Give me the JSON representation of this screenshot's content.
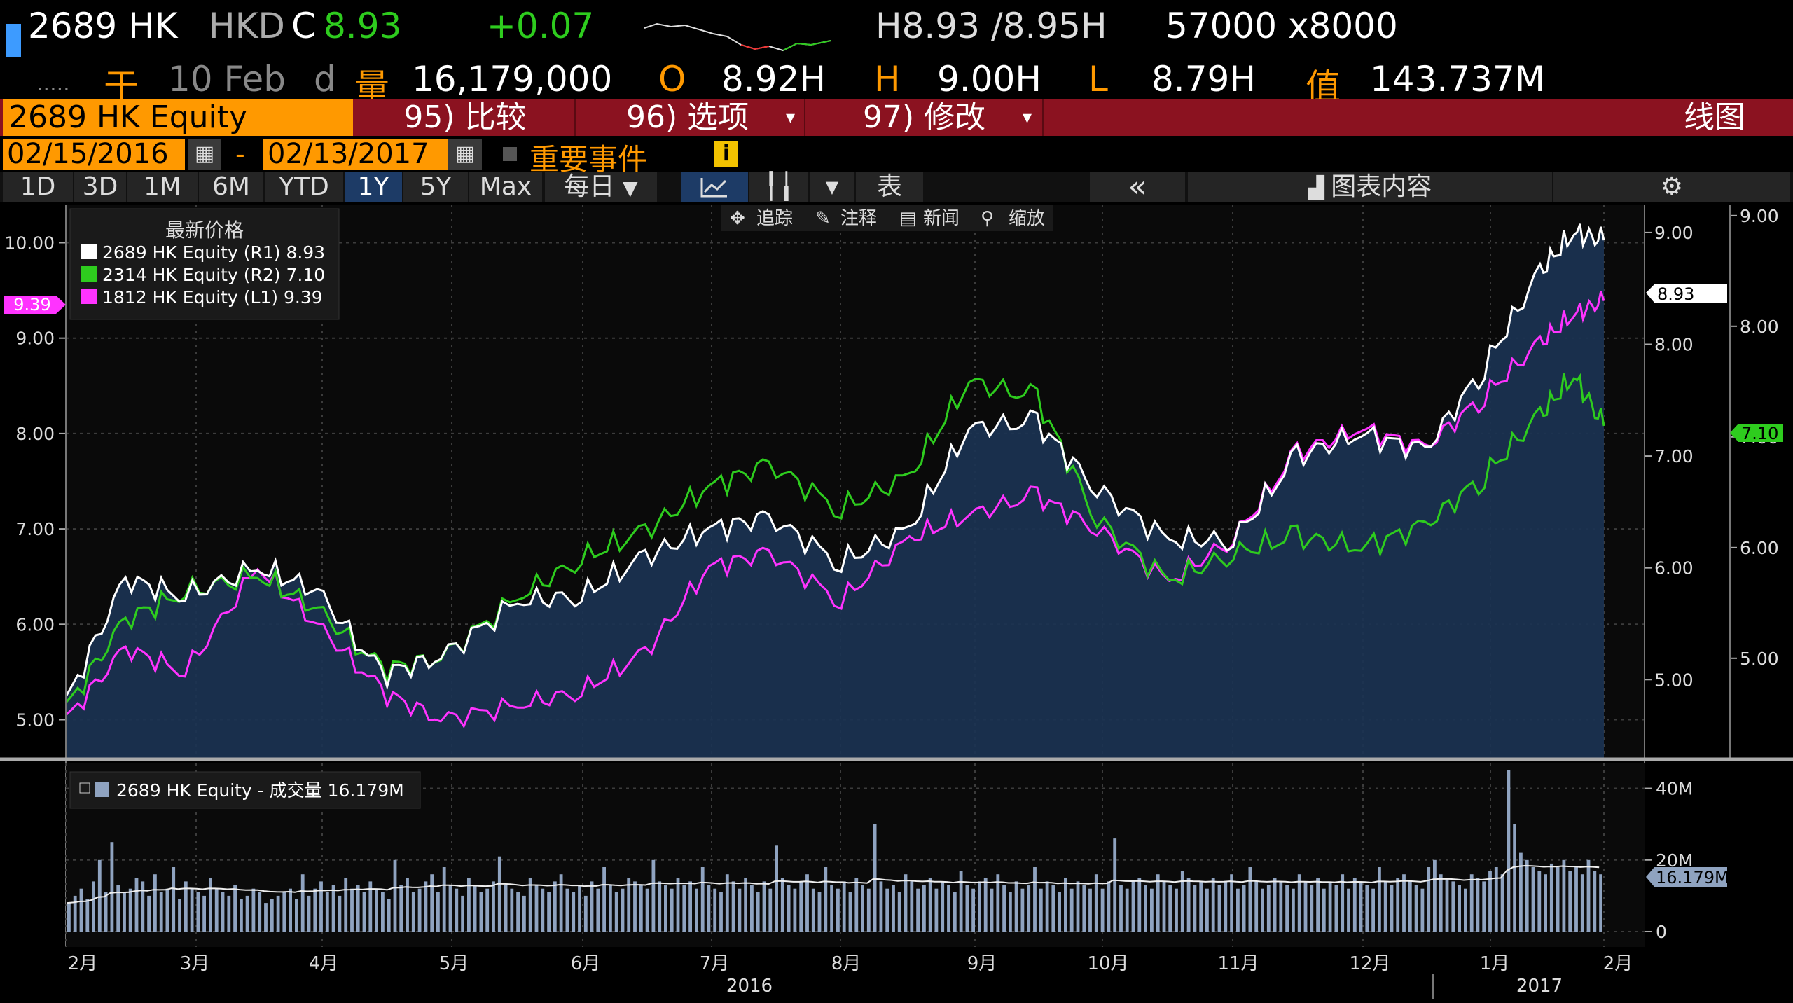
{
  "header": {
    "ticker": "2689 HK",
    "currency": "HKD",
    "close_flag": "C",
    "last_price": "8.93",
    "change": "+0.07",
    "bid_ask": "H8.93 /8.95H",
    "size": "57000 x8000",
    "dots": ".....",
    "date_prefix": "于",
    "date": "10 Feb",
    "date_suffix": "d",
    "volume_label": "量",
    "volume": "16,179,000",
    "open_label": "O",
    "open": "8.92H",
    "high_label": "H",
    "high": "9.00H",
    "low_label": "L",
    "low": "8.79H",
    "value_label": "值",
    "value": "143.737M"
  },
  "menu": {
    "security": "2689 HK Equity",
    "compare": "95) 比较",
    "options": "96) 选项",
    "modify": "97) 修改",
    "chart_type": "线图"
  },
  "range": {
    "start": "02/15/2016",
    "dash": "-",
    "end": "02/13/2017",
    "events": "重要事件",
    "info": "i"
  },
  "toolbar": {
    "periods": [
      "1D",
      "3D",
      "1M",
      "6M",
      "YTD",
      "1Y",
      "5Y",
      "Max"
    ],
    "selected": "1Y",
    "frequency": "每日",
    "table": "表",
    "collapse": "«",
    "chart_content": "图表内容"
  },
  "subtoolbar": [
    "追踪",
    "注释",
    "新闻",
    "缩放"
  ],
  "legend": {
    "title": "最新价格",
    "items": [
      {
        "label": "2689 HK Equity  (R1) 8.93",
        "color": "#ffffff"
      },
      {
        "label": "2314 HK Equity  (R2) 7.10",
        "color": "#2ecc1e"
      },
      {
        "label": "1812 HK Equity  (L1) 9.39",
        "color": "#ff33ff"
      }
    ]
  },
  "volume_legend": "2689 HK Equity - 成交量 16.179M",
  "colors": {
    "white_series": "#ffffff",
    "green_series": "#2ecc1e",
    "magenta_series": "#ff33ff",
    "area_fill": "#1b3352",
    "menu_bar": "#8b1220",
    "accent_orange": "#ff9900"
  },
  "chart_data": [
    {
      "type": "line",
      "title": "",
      "x": [
        "2016-02-15",
        "2016-02-29",
        "2016-03-14",
        "2016-03-31",
        "2016-04-14",
        "2016-04-29",
        "2016-05-13",
        "2016-05-31",
        "2016-06-15",
        "2016-06-30",
        "2016-07-15",
        "2016-07-29",
        "2016-08-15",
        "2016-08-31",
        "2016-09-14",
        "2016-09-30",
        "2016-10-14",
        "2016-10-31",
        "2016-11-15",
        "2016-11-30",
        "2016-12-15",
        "2016-12-30",
        "2017-01-13",
        "2017-01-26",
        "2017-02-03",
        "2017-02-10"
      ],
      "x_tick_labels": [
        "2月",
        "3月",
        "4月",
        "5月",
        "6月",
        "7月",
        "8月",
        "9月",
        "10月",
        "11月",
        "12月",
        "1月",
        "2月"
      ],
      "year_labels": [
        "2016",
        "2017"
      ],
      "left_axis": {
        "ticks": [
          "5.00",
          "6.00",
          "7.00",
          "8.00",
          "9.00",
          "10.00"
        ],
        "ylim": [
          4.6,
          10.4
        ]
      },
      "right1_axis": {
        "ticks": [
          "5.00",
          "6.00",
          "7.00",
          "8.00",
          "9.00"
        ],
        "ylim": [
          4.3,
          9.25
        ]
      },
      "right2_axis": {
        "ticks": [
          "5.00",
          "6.00",
          "7.00",
          "8.00",
          "9.00"
        ],
        "ylim": [
          4.1,
          9.1
        ]
      },
      "series": [
        {
          "name": "2689 HK Equity (R1)",
          "axis": "right1",
          "values": [
            4.8,
            5.9,
            5.75,
            6.0,
            5.8,
            5.05,
            5.2,
            5.7,
            5.75,
            6.1,
            6.35,
            6.45,
            6.05,
            6.35,
            7.25,
            7.3,
            6.7,
            6.25,
            6.25,
            7.0,
            7.2,
            7.05,
            7.8,
            8.65,
            9.0,
            8.93
          ]
        },
        {
          "name": "2314 HK Equity (R2)",
          "axis": "right2",
          "values": [
            4.55,
            5.35,
            5.6,
            5.75,
            5.45,
            4.9,
            5.0,
            5.55,
            5.9,
            6.15,
            6.55,
            6.75,
            6.35,
            6.65,
            7.5,
            7.35,
            6.25,
            5.7,
            5.95,
            6.1,
            6.0,
            6.2,
            6.65,
            7.2,
            7.55,
            7.1
          ]
        },
        {
          "name": "1812 HK Equity (L1)",
          "axis": "left",
          "values": [
            5.0,
            5.75,
            5.5,
            6.6,
            6.0,
            5.3,
            5.0,
            5.15,
            5.3,
            5.7,
            6.6,
            6.75,
            6.25,
            6.9,
            7.15,
            7.35,
            7.0,
            6.45,
            6.9,
            7.8,
            8.05,
            7.85,
            8.4,
            8.95,
            9.25,
            9.39
          ]
        }
      ],
      "last_value_tags": {
        "left": "9.39",
        "right1": "8.93",
        "right2": "7.10"
      }
    },
    {
      "type": "bar",
      "title": "",
      "series_name": "2689 HK Equity - 成交量",
      "y_ticks": [
        "0",
        "20M",
        "40M"
      ],
      "ylim": [
        0,
        45
      ],
      "last_value_tag": "16.179M",
      "values_millions": [
        8,
        10,
        12,
        9,
        14,
        20,
        11,
        25,
        13,
        11,
        12,
        15,
        14,
        10,
        16,
        11,
        12,
        18,
        9,
        14,
        12,
        11,
        10,
        15,
        12,
        11,
        10,
        13,
        9,
        10,
        12,
        11,
        8,
        9,
        10,
        11,
        12,
        9,
        16,
        10,
        12,
        14,
        11,
        13,
        10,
        15,
        12,
        13,
        11,
        14,
        12,
        11,
        9,
        20,
        13,
        15,
        11,
        12,
        14,
        16,
        11,
        18,
        13,
        12,
        10,
        15,
        13,
        11,
        12,
        14,
        21,
        13,
        12,
        11,
        10,
        15,
        13,
        12,
        11,
        14,
        16,
        12,
        11,
        13,
        10,
        14,
        12,
        18,
        13,
        11,
        12,
        15,
        14,
        13,
        12,
        20,
        14,
        13,
        12,
        15,
        13,
        14,
        12,
        18,
        13,
        12,
        11,
        16,
        14,
        12,
        15,
        13,
        11,
        14,
        12,
        24,
        15,
        13,
        12,
        14,
        16,
        12,
        11,
        18,
        13,
        12,
        14,
        11,
        15,
        13,
        12,
        30,
        14,
        12,
        13,
        11,
        16,
        14,
        12,
        13,
        15,
        12,
        14,
        13,
        11,
        17,
        13,
        12,
        14,
        15,
        12,
        16,
        13,
        11,
        14,
        12,
        13,
        18,
        12,
        14,
        13,
        11,
        15,
        12,
        14,
        13,
        12,
        16,
        12,
        14,
        26,
        13,
        12,
        14,
        15,
        13,
        12,
        16,
        14,
        13,
        12,
        17,
        15,
        13,
        14,
        12,
        15,
        13,
        14,
        16,
        12,
        13,
        18,
        14,
        12,
        13,
        15,
        14,
        13,
        12,
        16,
        14,
        13,
        15,
        12,
        14,
        13,
        16,
        12,
        15,
        14,
        13,
        12,
        18,
        14,
        13,
        15,
        16,
        14,
        13,
        12,
        18,
        20,
        16,
        15,
        14,
        13,
        12,
        16,
        15,
        14,
        17,
        18,
        16,
        45,
        30,
        22,
        20,
        18,
        17,
        16,
        19,
        18,
        20,
        17,
        18,
        16,
        20,
        17,
        16
      ]
    }
  ]
}
